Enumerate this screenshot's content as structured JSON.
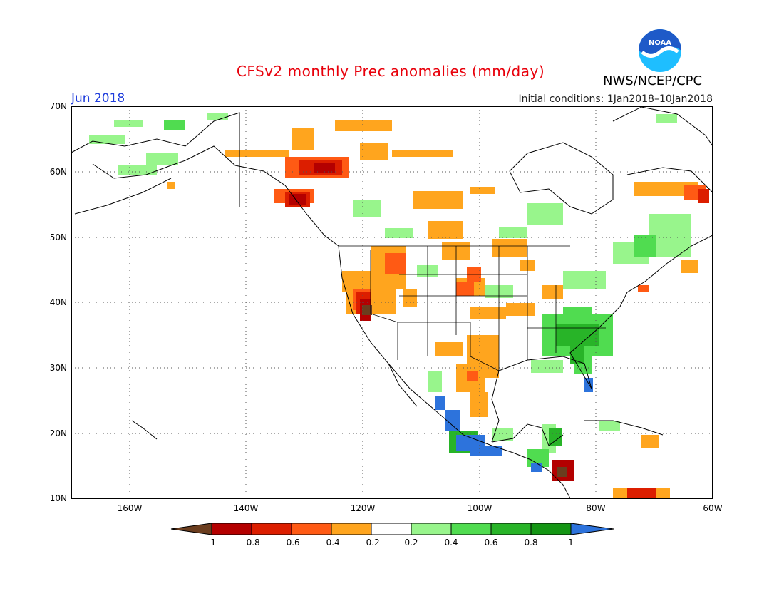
{
  "header": {
    "title": "CFSv2 monthly Prec anomalies (mm/day)",
    "month": "Jun 2018",
    "initial_conditions": "Initial conditions: 1Jan2018–10Jan2018",
    "agency": "NWS/NCEP/CPC",
    "logo_text": "NOAA"
  },
  "map": {
    "lat_labels": [
      "70N",
      "60N",
      "50N",
      "40N",
      "30N",
      "20N",
      "10N"
    ],
    "lon_labels": [
      "160W",
      "140W",
      "120W",
      "100W",
      "80W",
      "60W"
    ],
    "lat_range": [
      10,
      70
    ],
    "lon_range": [
      -170,
      -60
    ],
    "grid": "dotted every 10 degrees"
  },
  "colorbar": {
    "tick_labels": [
      "-1",
      "-0.8",
      "-0.6",
      "-0.4",
      "-0.2",
      "0.2",
      "0.4",
      "0.6",
      "0.8",
      "1"
    ],
    "colors": [
      "#6b3d1e",
      "#b40000",
      "#dc1e00",
      "#ff5a14",
      "#ffa51e",
      "#ffffff",
      "#98f58c",
      "#50dc50",
      "#28b428",
      "#149614",
      "#2d73dc"
    ],
    "units": "mm/day"
  },
  "colors": {
    "title": "#e8000b",
    "month": "#1e3cdc",
    "logo_blue": "#1e5ac8",
    "logo_cyan": "#1ebeff"
  }
}
